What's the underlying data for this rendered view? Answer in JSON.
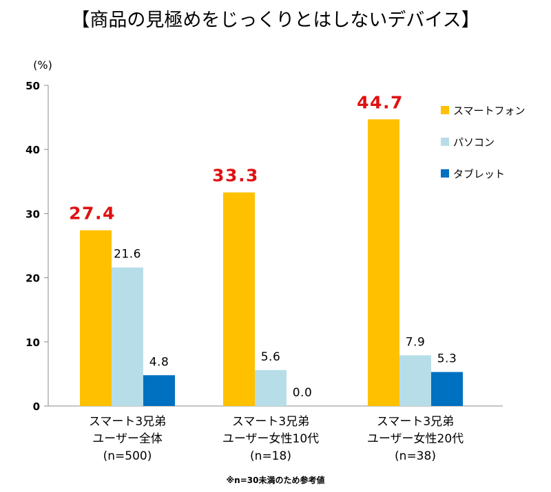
{
  "chart_data": {
    "type": "bar",
    "title": "【商品の見極めをじっくりとはしないデバイス】",
    "ylabel": "(%)",
    "ylim": [
      0,
      50
    ],
    "yticks": [
      0,
      10,
      20,
      30,
      40,
      50
    ],
    "grid": false,
    "legend_position": "right",
    "categories": [
      [
        "スマート3兄弟",
        "ユーザー全体",
        "(n=500)"
      ],
      [
        "スマート3兄弟",
        "ユーザー女性10代",
        "(n=18)"
      ],
      [
        "スマート3兄弟",
        "ユーザー女性20代",
        "(n=38)"
      ]
    ],
    "series": [
      {
        "name": "スマートフォン",
        "color": "#FFC000",
        "label_color": "#E01010",
        "values": [
          27.4,
          33.3,
          44.7
        ]
      },
      {
        "name": "パソコン",
        "color": "#B7DEE8",
        "label_color": "#000000",
        "values": [
          21.6,
          5.6,
          7.9
        ]
      },
      {
        "name": "タブレット",
        "color": "#0070C0",
        "label_color": "#000000",
        "values": [
          4.8,
          0.0,
          5.3
        ]
      }
    ],
    "footnote": "※n=30未満のため参考値"
  }
}
